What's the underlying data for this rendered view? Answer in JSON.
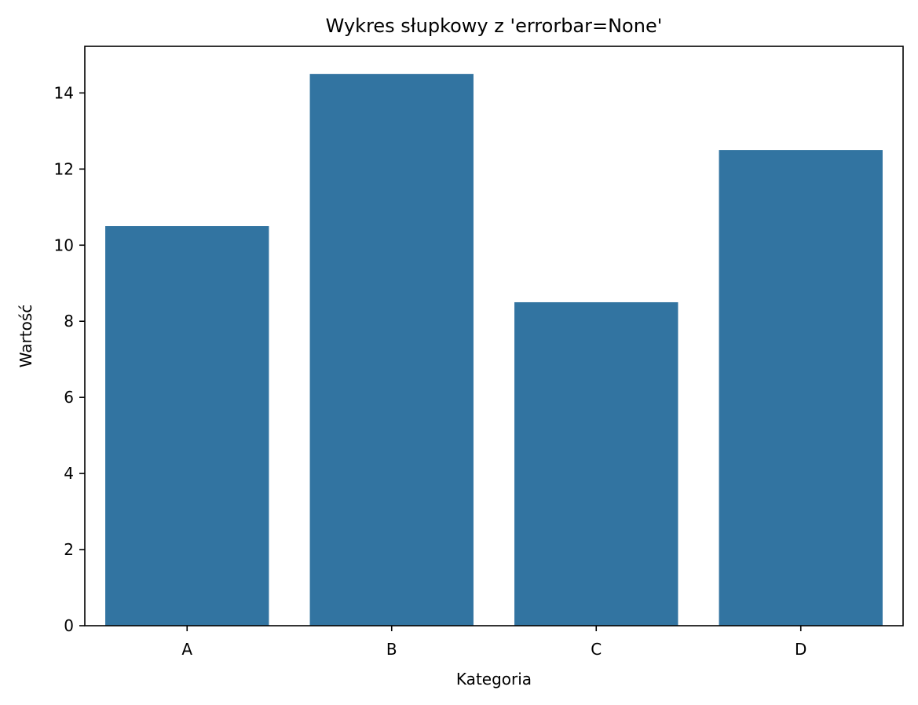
{
  "chart_data": {
    "type": "bar",
    "title": "Wykres słupkowy z 'errorbar=None'",
    "xlabel": "Kategoria",
    "ylabel": "Wartość",
    "categories": [
      "A",
      "B",
      "C",
      "D"
    ],
    "values": [
      10.5,
      14.5,
      8.5,
      12.5
    ],
    "ylim": [
      0,
      15.225
    ],
    "yticks": [
      0,
      2,
      4,
      6,
      8,
      10,
      12,
      14
    ],
    "grid": false,
    "legend": "none",
    "bar_color": "#3274a1",
    "axis_color": "#000000"
  }
}
